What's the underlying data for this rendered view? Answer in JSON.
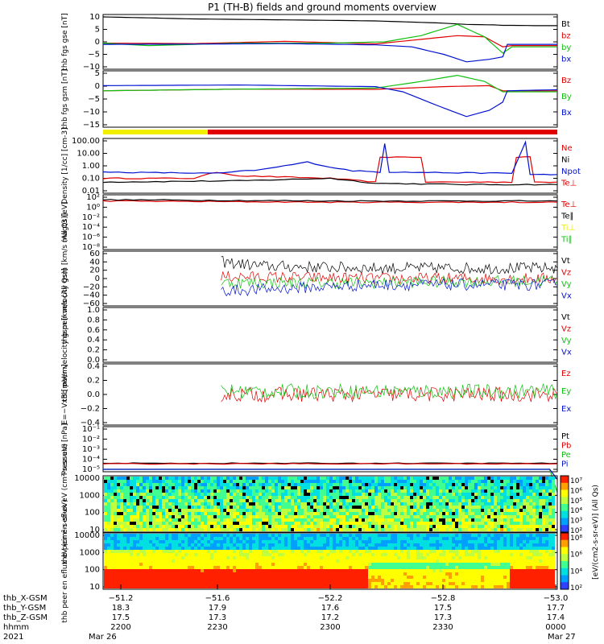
{
  "title": "P1 (TH-B) fields and ground moments overview",
  "colors": {
    "black": "#000000",
    "red": "#e00000",
    "green": "#10c010",
    "blue": "#0010d0",
    "yellow": "#f0f000"
  },
  "chart_data": [
    {
      "type": "line",
      "panel": "fgs-gse",
      "ylabel": "thb fgs gse [nT]",
      "yticks": [
        "10",
        "5",
        "0",
        "−5",
        "−10"
      ],
      "ylim": [
        -10,
        10
      ],
      "series": [
        {
          "name": "Bt",
          "color": "black",
          "points": [
            [
              0,
              10
            ],
            [
              0.2,
              9.2
            ],
            [
              0.4,
              8.8
            ],
            [
              0.6,
              8.4
            ],
            [
              0.75,
              7.5
            ],
            [
              0.8,
              7
            ],
            [
              0.86,
              6.8
            ],
            [
              0.88,
              6.6
            ],
            [
              0.9,
              6.6
            ],
            [
              0.95,
              6.5
            ],
            [
              1,
              6.5
            ]
          ]
        },
        {
          "name": "bz",
          "color": "red",
          "points": [
            [
              0,
              -0.5
            ],
            [
              0.2,
              -0.7
            ],
            [
              0.4,
              0.2
            ],
            [
              0.6,
              -0.8
            ],
            [
              0.7,
              1
            ],
            [
              0.78,
              2.5
            ],
            [
              0.84,
              2.0
            ],
            [
              0.88,
              -2
            ],
            [
              0.9,
              -1.5
            ],
            [
              0.95,
              -1.5
            ],
            [
              1,
              -1.5
            ]
          ]
        },
        {
          "name": "by",
          "color": "green",
          "points": [
            [
              0,
              -0.5
            ],
            [
              0.1,
              -1.5
            ],
            [
              0.3,
              -0.5
            ],
            [
              0.5,
              -0.5
            ],
            [
              0.62,
              0
            ],
            [
              0.7,
              2.5
            ],
            [
              0.78,
              7
            ],
            [
              0.84,
              2
            ],
            [
              0.88,
              -4.5
            ],
            [
              0.9,
              -2
            ],
            [
              1,
              -2
            ]
          ]
        },
        {
          "name": "bx",
          "color": "blue",
          "points": [
            [
              0,
              -1
            ],
            [
              0.2,
              -0.9
            ],
            [
              0.4,
              -0.7
            ],
            [
              0.6,
              -1.2
            ],
            [
              0.68,
              -2
            ],
            [
              0.75,
              -5
            ],
            [
              0.8,
              -8
            ],
            [
              0.85,
              -7
            ],
            [
              0.88,
              -6
            ],
            [
              0.89,
              -1
            ],
            [
              1,
              -1
            ]
          ]
        }
      ]
    },
    {
      "type": "line",
      "panel": "fgs-gsm",
      "ylabel": "thb fgs gsm [nT]",
      "yticks": [
        "5",
        "0",
        "−5",
        "−10",
        "−15"
      ],
      "ylim": [
        -17,
        8
      ],
      "series": [
        {
          "name": "Bz",
          "color": "red",
          "points": [
            [
              0,
              -0.5
            ],
            [
              0.3,
              0.3
            ],
            [
              0.6,
              0.2
            ],
            [
              0.75,
              1.5
            ],
            [
              0.85,
              2
            ],
            [
              0.88,
              -0.5
            ],
            [
              1,
              -0.5
            ]
          ]
        },
        {
          "name": "By",
          "color": "green",
          "points": [
            [
              0,
              -0.5
            ],
            [
              0.3,
              0.3
            ],
            [
              0.6,
              0.8
            ],
            [
              0.7,
              4
            ],
            [
              0.78,
              7
            ],
            [
              0.84,
              4
            ],
            [
              0.88,
              -1
            ],
            [
              1,
              -1
            ]
          ]
        },
        {
          "name": "Bx",
          "color": "blue",
          "points": [
            [
              0,
              2
            ],
            [
              0.3,
              2.3
            ],
            [
              0.6,
              1.5
            ],
            [
              0.66,
              -1
            ],
            [
              0.74,
              -8
            ],
            [
              0.8,
              -13
            ],
            [
              0.85,
              -10
            ],
            [
              0.88,
              -6
            ],
            [
              0.89,
              -0.5
            ],
            [
              1,
              0
            ]
          ]
        }
      ]
    },
    {
      "type": "line",
      "panel": "density",
      "ylabel": "Density [1/cc] [cm-3]",
      "yticks": [
        "100.00",
        "10.00",
        "1.00",
        "0.10",
        "0.01"
      ],
      "scale": "log",
      "series": [
        {
          "name": "Ne",
          "color": "red",
          "points": [
            [
              0,
              -1.0
            ],
            [
              0.2,
              -1.0
            ],
            [
              0.25,
              -0.5
            ],
            [
              0.3,
              -0.8
            ],
            [
              0.5,
              -1.0
            ],
            [
              0.6,
              -1.3
            ],
            [
              0.61,
              0.7
            ],
            [
              0.7,
              0.7
            ],
            [
              0.71,
              -1.3
            ],
            [
              0.9,
              -1.3
            ],
            [
              0.91,
              0.7
            ],
            [
              0.94,
              0.7
            ],
            [
              0.95,
              -1.3
            ],
            [
              1,
              -1.3
            ]
          ]
        },
        {
          "name": "Ni",
          "color": "black",
          "points": [
            [
              0,
              -1.3
            ],
            [
              0.3,
              -1.2
            ],
            [
              0.5,
              -1.0
            ],
            [
              0.6,
              -1.4
            ],
            [
              0.8,
              -1.5
            ],
            [
              1,
              -1.5
            ]
          ]
        },
        {
          "name": "Npot",
          "color": "blue",
          "points": [
            [
              0,
              -0.5
            ],
            [
              0.25,
              -0.6
            ],
            [
              0.35,
              -0.3
            ],
            [
              0.45,
              0.3
            ],
            [
              0.5,
              -0.1
            ],
            [
              0.55,
              -0.4
            ],
            [
              0.61,
              -0.5
            ],
            [
              0.62,
              1.8
            ],
            [
              0.63,
              -0.5
            ],
            [
              0.9,
              -0.6
            ],
            [
              0.93,
              1.9
            ],
            [
              0.94,
              -0.7
            ],
            [
              1,
              -0.7
            ]
          ]
        },
        {
          "name": "Te⊥",
          "color": "red",
          "points": []
        }
      ]
    },
    {
      "type": "line",
      "panel": "temperature",
      "ylabel": "magt3 [eV]",
      "yticks": [
        "10²",
        "10⁰",
        "10⁻²",
        "10⁻⁴",
        "10⁻⁶",
        "10⁻⁸"
      ],
      "scale": "log",
      "series": [
        {
          "name": "Te⊥",
          "color": "red",
          "points": [
            [
              0,
              1.7
            ],
            [
              0.5,
              1.6
            ],
            [
              1,
              1.6
            ]
          ]
        },
        {
          "name": "Te∥",
          "color": "black",
          "points": [
            [
              0,
              1.8
            ],
            [
              0.5,
              1.7
            ],
            [
              1,
              1.7
            ]
          ]
        },
        {
          "name": "Ti⊥",
          "color": "yellow",
          "points": []
        },
        {
          "name": "Ti∥",
          "color": "green",
          "points": []
        }
      ]
    },
    {
      "type": "line",
      "panel": "peir-velocity",
      "ylabel": "thb peir velocity gsm [km/s (All Qs)]",
      "yticks": [
        "60",
        "40",
        "20",
        "0",
        "−20",
        "−40",
        "−60"
      ],
      "ylim": [
        -60,
        60
      ],
      "series": [
        {
          "name": "Vt",
          "color": "black",
          "points": [
            [
              0.26,
              40
            ],
            [
              0.35,
              30
            ],
            [
              0.6,
              25
            ],
            [
              1,
              25
            ]
          ]
        },
        {
          "name": "Vz",
          "color": "red",
          "points": [
            [
              0.26,
              5
            ],
            [
              0.6,
              0
            ],
            [
              1,
              0
            ]
          ]
        },
        {
          "name": "Vy",
          "color": "green",
          "points": [
            [
              0.26,
              -10
            ],
            [
              0.6,
              -10
            ],
            [
              1,
              -5
            ]
          ]
        },
        {
          "name": "Vx",
          "color": "blue",
          "points": [
            [
              0.26,
              -30
            ],
            [
              0.6,
              -15
            ],
            [
              1,
              -15
            ]
          ]
        }
      ]
    },
    {
      "type": "line",
      "panel": "peer-velocity",
      "ylabel": "thb peer velocity gsm [km/s (All Qs)]",
      "yticks": [
        "1.0",
        "0.8",
        "0.6",
        "0.4",
        "0.2",
        "0.0"
      ],
      "ylim": [
        0,
        1
      ],
      "series": [
        {
          "name": "Vt",
          "color": "black",
          "points": []
        },
        {
          "name": "Vz",
          "color": "red",
          "points": []
        },
        {
          "name": "Vy",
          "color": "green",
          "points": []
        },
        {
          "name": "Vx",
          "color": "blue",
          "points": []
        }
      ]
    },
    {
      "type": "line",
      "panel": "efield",
      "ylabel": "E=−VxB [mV/m]",
      "yticks": [
        "0.4",
        "0.2",
        "0.0",
        "−0.2",
        "−0.4"
      ],
      "ylim": [
        -0.45,
        0.45
      ],
      "series": [
        {
          "name": "Ez",
          "color": "red",
          "points": [
            [
              0.26,
              0
            ],
            [
              1,
              0
            ]
          ]
        },
        {
          "name": "Ey",
          "color": "green",
          "points": [
            [
              0.26,
              0.05
            ],
            [
              1,
              0.05
            ]
          ]
        },
        {
          "name": "Ex",
          "color": "blue",
          "points": []
        }
      ]
    },
    {
      "type": "line",
      "panel": "pressure",
      "ylabel": "Pressure [nPa]",
      "yticks": [
        "10⁻¹",
        "10⁻²",
        "10⁻³",
        "10⁻⁴",
        "10⁻⁵"
      ],
      "scale": "log",
      "series": [
        {
          "name": "Pt",
          "color": "black",
          "points": [
            [
              0,
              -1.4
            ],
            [
              1,
              -1.4
            ]
          ]
        },
        {
          "name": "Pb",
          "color": "red",
          "points": [
            [
              0,
              -1.45
            ],
            [
              1,
              -1.45
            ]
          ]
        },
        {
          "name": "Pe",
          "color": "green",
          "points": [
            [
              0,
              -4.0
            ],
            [
              0.6,
              -4.0
            ],
            [
              0.61,
              -3.4
            ],
            [
              0.7,
              -3.4
            ],
            [
              0.71,
              -4.3
            ],
            [
              0.9,
              -4.3
            ],
            [
              0.91,
              -3.4
            ],
            [
              0.94,
              -3.4
            ],
            [
              0.95,
              -4.3
            ],
            [
              1,
              -4.3
            ]
          ]
        },
        {
          "name": "Pi",
          "color": "blue",
          "points": [
            [
              0,
              -3.0
            ],
            [
              1,
              -3.0
            ]
          ]
        }
      ]
    },
    {
      "type": "heatmap",
      "panel": "peir-spectrogram",
      "ylabel": "thb peir en eflux eV (cm²-s-sr-eV)",
      "yticks": [
        "10000",
        "1000",
        "100",
        "10"
      ],
      "colorbar_label": "[eV/(cm2-s-sr-eV)] (All Qs)",
      "colorbar_ticks": [
        "10⁷",
        "10⁶",
        "10⁵",
        "10⁴",
        "10³",
        "10²"
      ]
    },
    {
      "type": "heatmap",
      "panel": "peer-spectrogram",
      "ylabel": "thb peer en eflux eV (cm²-s-sr-eV)",
      "yticks": [
        "10000",
        "1000",
        "100",
        "10"
      ],
      "colorbar_ticks": [
        "10⁸",
        "10⁶",
        "10⁴",
        "10²"
      ]
    }
  ],
  "x_axis": {
    "rows": [
      {
        "label": "thb_X-GSM",
        "values": [
          "−51.2",
          "−51.6",
          "−52.2",
          "−52.8",
          "−53.0"
        ]
      },
      {
        "label": "thb_Y-GSM",
        "values": [
          "18.3",
          "17.9",
          "17.6",
          "17.5",
          "17.7"
        ]
      },
      {
        "label": "thb_Z-GSM",
        "values": [
          "17.5",
          "17.3",
          "17.2",
          "17.3",
          "17.4"
        ]
      },
      {
        "label": "hhmm",
        "values": [
          "2200",
          "2230",
          "2300",
          "2330",
          "0000"
        ]
      },
      {
        "label": "2021",
        "values": [
          "Mar 26",
          "",
          "",
          "",
          "Mar 27"
        ]
      }
    ]
  }
}
